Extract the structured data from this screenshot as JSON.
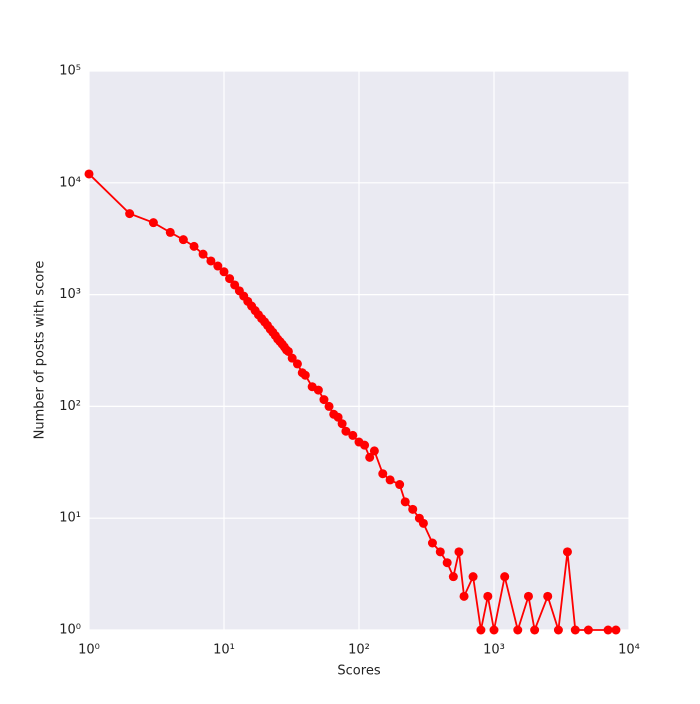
{
  "chart_data": {
    "type": "line",
    "x_label": "Scores",
    "y_label": "Number of posts with score",
    "x": [
      1,
      2,
      3,
      4,
      5,
      6,
      7,
      8,
      9,
      10,
      11,
      12,
      13,
      14,
      15,
      16,
      17,
      18,
      19,
      20,
      21,
      22,
      23,
      24,
      25,
      26,
      27,
      28,
      29,
      30,
      32,
      35,
      38,
      40,
      45,
      50,
      55,
      60,
      65,
      70,
      75,
      80,
      90,
      100,
      110,
      120,
      130,
      150,
      170,
      200,
      220,
      250,
      280,
      300,
      350,
      400,
      450,
      500,
      550,
      600,
      700,
      800,
      900,
      1000,
      1200,
      1500,
      1800,
      2000,
      2500,
      3000,
      3500,
      4000,
      5000,
      7000,
      8000
    ],
    "series": [
      {
        "color": "#ff0000",
        "values": [
          12000,
          5300,
          4400,
          3600,
          3100,
          2700,
          2300,
          2000,
          1800,
          1600,
          1390,
          1220,
          1080,
          970,
          870,
          790,
          720,
          660,
          610,
          570,
          530,
          490,
          460,
          430,
          400,
          380,
          360,
          340,
          320,
          310,
          270,
          240,
          200,
          190,
          150,
          140,
          115,
          100,
          85,
          80,
          70,
          60,
          55,
          48,
          45,
          35,
          40,
          25,
          22,
          20,
          14,
          12,
          10,
          9,
          6,
          5,
          4,
          3,
          5,
          2,
          3,
          1,
          2,
          1,
          3,
          1,
          2,
          1,
          2,
          1,
          5,
          1,
          1,
          1,
          1
        ]
      }
    ],
    "log_x": true,
    "log_y": true,
    "grid": true,
    "xlim": [
      1,
      10000
    ],
    "ylim": [
      1,
      100000
    ],
    "xticks": [
      {
        "value": 1,
        "label": "10⁰"
      },
      {
        "value": 10,
        "label": "10¹"
      },
      {
        "value": 100,
        "label": "10²"
      },
      {
        "value": 1000,
        "label": "10³"
      },
      {
        "value": 10000,
        "label": "10⁴"
      }
    ],
    "yticks": [
      {
        "value": 1,
        "label": "10⁰"
      },
      {
        "value": 10,
        "label": "10¹"
      },
      {
        "value": 100,
        "label": "10²"
      },
      {
        "value": 1000,
        "label": "10³"
      },
      {
        "value": 10000,
        "label": "10⁴"
      },
      {
        "value": 100000,
        "label": "10⁵"
      }
    ]
  }
}
